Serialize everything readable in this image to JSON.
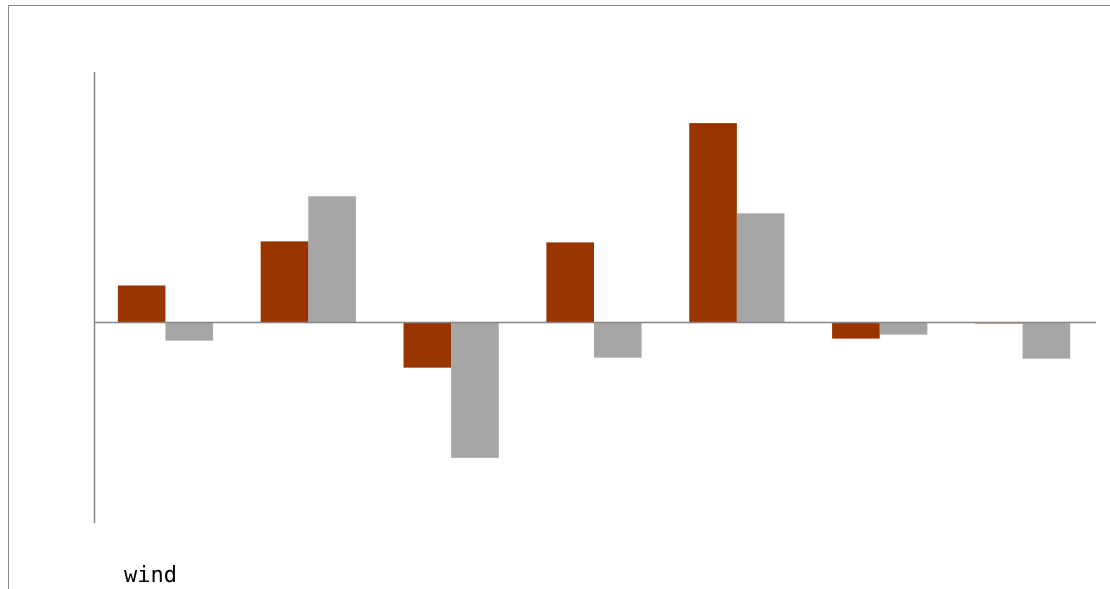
{
  "chart_data": {
    "type": "bar",
    "categories": [
      "",
      "",
      "",
      "",
      "",
      "",
      ""
    ],
    "series": [
      {
        "color": "#993300",
        "values": [
          0.37,
          0.81,
          -0.45,
          0.8,
          1.99,
          -0.16,
          -0.01
        ]
      },
      {
        "color": "#a6a6a6",
        "values": [
          -0.18,
          1.26,
          -1.35,
          -0.35,
          1.09,
          -0.12,
          -0.36
        ]
      }
    ],
    "ylim": [
      -2.0,
      2.5
    ],
    "annotation": "wind",
    "grid": false,
    "legend": "none"
  },
  "colors": {
    "axis": "#868686",
    "border": "#868686"
  }
}
